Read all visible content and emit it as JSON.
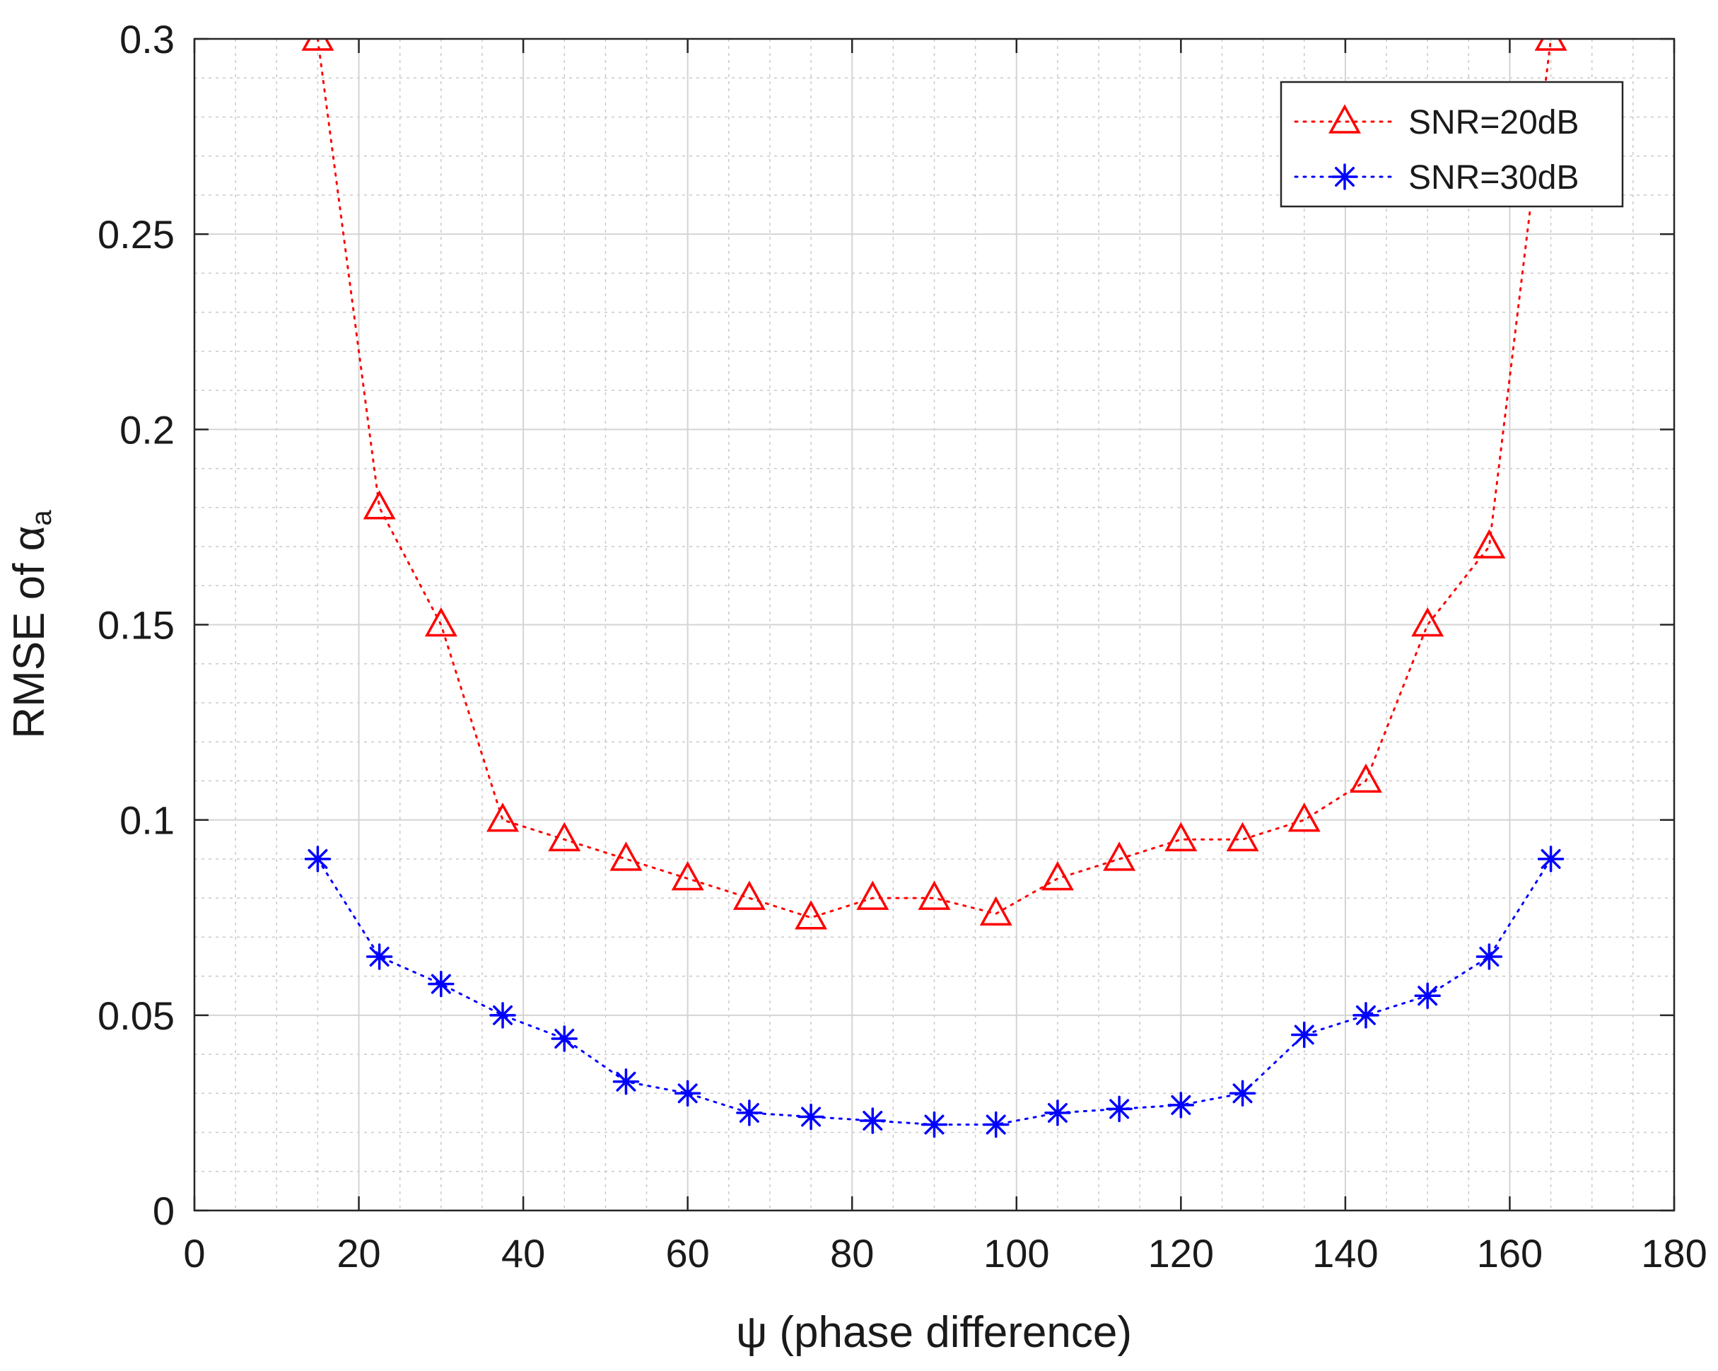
{
  "chart_data": {
    "type": "line",
    "title": "",
    "xlabel": "ψ (phase difference)",
    "ylabel": "RMSE of α",
    "ylabel_subscript": "a",
    "xlim": [
      0,
      180
    ],
    "ylim": [
      0,
      0.3
    ],
    "xticks": [
      0,
      20,
      40,
      60,
      80,
      100,
      120,
      140,
      160,
      180
    ],
    "xtick_labels": [
      "0",
      "20",
      "40",
      "60",
      "80",
      "100",
      "120",
      "140",
      "160",
      "180"
    ],
    "yticks": [
      0,
      0.05,
      0.1,
      0.15,
      0.2,
      0.25,
      0.3
    ],
    "ytick_labels": [
      "0",
      "0.05",
      "0.1",
      "0.15",
      "0.2",
      "0.25",
      "0.3"
    ],
    "grid": true,
    "minor_grid": true,
    "legend_position": "top-right",
    "x": [
      15,
      22.5,
      30,
      37.5,
      45,
      52.5,
      60,
      67.5,
      75,
      82.5,
      90,
      97.5,
      105,
      112.5,
      120,
      127.5,
      135,
      142.5,
      150,
      157.5,
      165
    ],
    "series": [
      {
        "name": "SNR=20dB",
        "color": "#ff0000",
        "marker": "triangle",
        "values": [
          0.3,
          0.18,
          0.15,
          0.1,
          0.095,
          0.09,
          0.085,
          0.08,
          0.075,
          0.08,
          0.08,
          0.076,
          0.085,
          0.09,
          0.095,
          0.095,
          0.1,
          0.11,
          0.15,
          0.17,
          0.3
        ]
      },
      {
        "name": "SNR=30dB",
        "color": "#0000ff",
        "marker": "asterisk",
        "values": [
          0.09,
          0.065,
          0.058,
          0.05,
          0.044,
          0.033,
          0.03,
          0.025,
          0.024,
          0.023,
          0.022,
          0.022,
          0.025,
          0.026,
          0.027,
          0.03,
          0.045,
          0.05,
          0.055,
          0.065,
          0.09
        ]
      }
    ]
  }
}
